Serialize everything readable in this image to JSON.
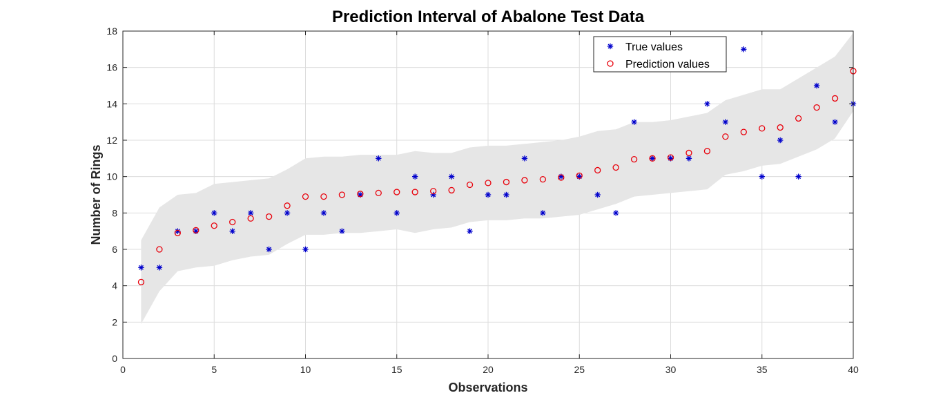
{
  "chart_data": {
    "type": "scatter",
    "title": "Prediction Interval of Abalone Test Data",
    "xlabel": "Observations",
    "ylabel": "Number of Rings",
    "xlim": [
      0,
      40
    ],
    "ylim": [
      0,
      18
    ],
    "xticks": [
      0,
      5,
      10,
      15,
      20,
      25,
      30,
      35,
      40
    ],
    "yticks": [
      0,
      2,
      4,
      6,
      8,
      10,
      12,
      14,
      16,
      18
    ],
    "grid": true,
    "legend_position": "top-right",
    "x": [
      1,
      2,
      3,
      4,
      5,
      6,
      7,
      8,
      9,
      10,
      11,
      12,
      13,
      14,
      15,
      16,
      17,
      18,
      19,
      20,
      21,
      22,
      23,
      24,
      25,
      26,
      27,
      28,
      29,
      30,
      31,
      32,
      33,
      34,
      35,
      36,
      37,
      38,
      39,
      40
    ],
    "interval": {
      "color": "#e6e6e6",
      "upper": [
        6.5,
        8.3,
        9.0,
        9.1,
        9.6,
        9.7,
        9.8,
        9.9,
        10.4,
        11.0,
        11.1,
        11.1,
        11.2,
        11.2,
        11.2,
        11.4,
        11.3,
        11.3,
        11.6,
        11.7,
        11.7,
        11.8,
        11.9,
        12.0,
        12.2,
        12.5,
        12.6,
        13.0,
        13.0,
        13.1,
        13.3,
        13.5,
        14.2,
        14.5,
        14.8,
        14.8,
        15.4,
        16.0,
        16.6,
        17.9
      ],
      "lower": [
        1.9,
        3.7,
        4.8,
        5.0,
        5.1,
        5.4,
        5.6,
        5.7,
        6.3,
        6.8,
        6.8,
        6.9,
        6.9,
        7.0,
        7.1,
        6.9,
        7.1,
        7.2,
        7.5,
        7.6,
        7.6,
        7.7,
        7.7,
        7.8,
        7.9,
        8.2,
        8.5,
        8.9,
        9.0,
        9.1,
        9.2,
        9.3,
        10.1,
        10.3,
        10.6,
        10.7,
        11.1,
        11.5,
        12.1,
        13.6
      ]
    },
    "series": [
      {
        "name": "True values",
        "marker": "asterisk",
        "color": "#0000cc",
        "values": [
          5,
          5,
          7,
          7,
          8,
          7,
          8,
          6,
          8,
          6,
          8,
          7,
          9,
          11,
          8,
          10,
          9,
          10,
          7,
          9,
          9,
          11,
          8,
          10,
          10,
          9,
          8,
          13,
          11,
          11,
          11,
          14,
          13,
          17,
          10,
          12,
          10,
          15,
          13,
          14
        ]
      },
      {
        "name": "Prediction values",
        "marker": "circle",
        "color": "#e8000b",
        "values": [
          4.2,
          6.0,
          6.9,
          7.05,
          7.3,
          7.5,
          7.7,
          7.8,
          8.4,
          8.9,
          8.9,
          9.0,
          9.05,
          9.1,
          9.15,
          9.15,
          9.2,
          9.25,
          9.55,
          9.65,
          9.7,
          9.8,
          9.85,
          9.95,
          10.05,
          10.35,
          10.5,
          10.95,
          11.0,
          11.05,
          11.3,
          11.4,
          12.2,
          12.45,
          12.65,
          12.7,
          13.2,
          13.8,
          14.3,
          15.8
        ]
      }
    ]
  }
}
